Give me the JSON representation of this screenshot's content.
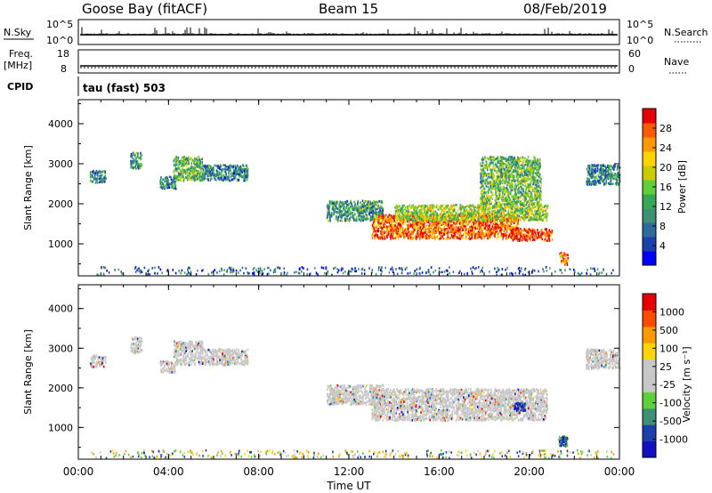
{
  "header": {
    "station": "Goose Bay (fitACF)",
    "beam": "Beam 15",
    "date": "08/Feb/2019"
  },
  "top_panels": {
    "nsky_label": "N.Sky",
    "nsearch_label": "N.Search",
    "nsky_ticks": [
      "10^5",
      "10^0"
    ],
    "nsearch_ticks": [
      "10^5",
      "10^0"
    ],
    "freq_label": "Freq.",
    "freq_unit": "[MHz]",
    "freq_ticks": [
      "18",
      "8"
    ],
    "nave_label": "Nave",
    "nave_ticks": [
      "60",
      "0"
    ],
    "cpid_label": "CPID",
    "cpid_text": "tau (fast) 503"
  },
  "chart_data": [
    {
      "type": "heatmap",
      "panel": "power",
      "ylabel": "Slant Range [km]",
      "y_ticks": [
        "4000",
        "3000",
        "2000",
        "1000"
      ],
      "ylim": [
        200,
        4600
      ],
      "colorbar_label": "Power [dB]",
      "colorbar_ticks": [
        "28",
        "24",
        "20",
        "16",
        "12",
        "8",
        "4"
      ],
      "colors": [
        "#0000ff",
        "#1c3fae",
        "#2e6a9a",
        "#3f8f74",
        "#37a858",
        "#5fcf3c",
        "#c8cc00",
        "#ffd400",
        "#ff9900",
        "#ff5a00",
        "#e60000"
      ],
      "regions": [
        {
          "t0": 0.5,
          "t1": 1.2,
          "r0": 2550,
          "r1": 2850,
          "level": 0.3
        },
        {
          "t0": 2.3,
          "t1": 2.8,
          "r0": 2900,
          "r1": 3300,
          "level": 0.35
        },
        {
          "t0": 3.6,
          "t1": 4.3,
          "r0": 2400,
          "r1": 2700,
          "level": 0.3
        },
        {
          "t0": 4.2,
          "t1": 5.5,
          "r0": 2600,
          "r1": 3200,
          "level": 0.45
        },
        {
          "t0": 5.5,
          "t1": 7.5,
          "r0": 2600,
          "r1": 3000,
          "level": 0.3
        },
        {
          "t0": 11.0,
          "t1": 13.5,
          "r0": 1600,
          "r1": 2100,
          "level": 0.35
        },
        {
          "t0": 13.0,
          "t1": 19.5,
          "r0": 1150,
          "r1": 1750,
          "level": 0.85
        },
        {
          "t0": 14.0,
          "t1": 20.8,
          "r0": 1600,
          "r1": 2000,
          "level": 0.55
        },
        {
          "t0": 17.8,
          "t1": 20.5,
          "r0": 2000,
          "r1": 3200,
          "level": 0.45
        },
        {
          "t0": 19.2,
          "t1": 21.0,
          "r0": 1100,
          "r1": 1400,
          "level": 0.9
        },
        {
          "t0": 21.3,
          "t1": 21.7,
          "r0": 500,
          "r1": 800,
          "level": 0.8
        },
        {
          "t0": 22.5,
          "t1": 24.0,
          "r0": 2500,
          "r1": 3000,
          "level": 0.3
        },
        {
          "t0": 0.5,
          "t1": 24.0,
          "r0": 250,
          "r1": 450,
          "level": 0.2
        }
      ]
    },
    {
      "type": "heatmap",
      "panel": "velocity",
      "ylabel": "Slant Range [km]",
      "y_ticks": [
        "4000",
        "3000",
        "2000",
        "1000"
      ],
      "ylim": [
        200,
        4600
      ],
      "colorbar_label": "Velocity [m s⁻¹]",
      "colorbar_ticks": [
        "1000",
        "500",
        "100",
        "25",
        "-25",
        "-100",
        "-500",
        "-1000"
      ],
      "colors": [
        "#e60000",
        "#ff4a00",
        "#ff9900",
        "#ffd400",
        "#c8c8c8",
        "#c8c8c8",
        "#5fcf3c",
        "#3f8f74",
        "#1c3fae",
        "#1010c0"
      ],
      "regions": [
        {
          "t0": 0.5,
          "t1": 1.2,
          "r0": 2550,
          "r1": 2850
        },
        {
          "t0": 2.3,
          "t1": 2.8,
          "r0": 2900,
          "r1": 3300
        },
        {
          "t0": 3.6,
          "t1": 4.3,
          "r0": 2400,
          "r1": 2700
        },
        {
          "t0": 4.2,
          "t1": 5.5,
          "r0": 2600,
          "r1": 3200
        },
        {
          "t0": 5.5,
          "t1": 7.5,
          "r0": 2600,
          "r1": 3000
        },
        {
          "t0": 11.0,
          "t1": 13.5,
          "r0": 1600,
          "r1": 2100
        },
        {
          "t0": 13.0,
          "t1": 20.8,
          "r0": 1200,
          "r1": 2000
        },
        {
          "t0": 22.5,
          "t1": 24.0,
          "r0": 2500,
          "r1": 3000
        }
      ],
      "features": [
        {
          "t0": 19.3,
          "t1": 19.8,
          "r0": 1450,
          "r1": 1650,
          "level": 0.9
        },
        {
          "t0": 21.3,
          "t1": 21.7,
          "r0": 550,
          "r1": 800,
          "level": 0.8
        }
      ]
    }
  ],
  "x_axis": {
    "ticks": [
      "00:00",
      "04:00",
      "08:00",
      "12:00",
      "16:00",
      "20:00",
      "00:00"
    ],
    "label": "Time UT",
    "range_hours": [
      0,
      24
    ]
  }
}
